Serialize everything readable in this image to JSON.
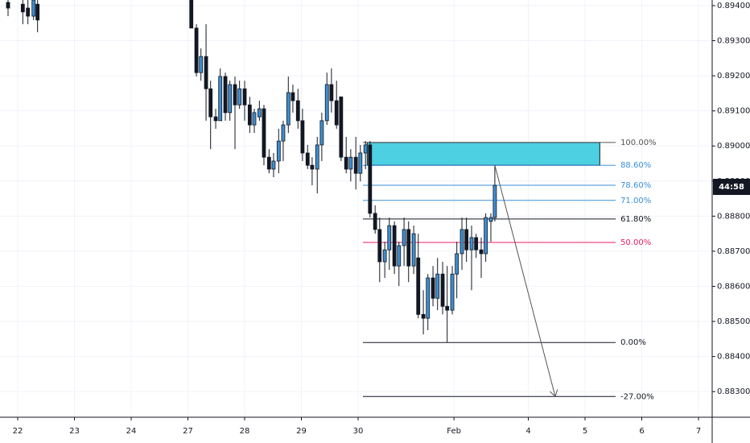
{
  "chart_data": {
    "type": "candlestick",
    "candles": {
      "up_color": "#3d8fd1",
      "down_color": "#131722",
      "x": [
        -0.17,
        0.09,
        0.18,
        0.28,
        0.35,
        3.06,
        3.15,
        3.23,
        3.32,
        3.4,
        3.49,
        3.57,
        3.66,
        3.74,
        3.83,
        3.91,
        4.0,
        4.09,
        4.17,
        4.26,
        4.34,
        4.43,
        4.51,
        4.6,
        4.68,
        4.77,
        4.85,
        4.94,
        5.02,
        5.11,
        5.19,
        5.28,
        5.36,
        5.45,
        5.53,
        5.62,
        5.7,
        5.79,
        5.87,
        5.96,
        6.04,
        6.13,
        6.21,
        6.3,
        6.38,
        6.47,
        6.55,
        6.64,
        6.72,
        6.81,
        6.89,
        6.98,
        7.06,
        7.15,
        7.23,
        7.32,
        7.4,
        7.49,
        7.57,
        7.66,
        7.74,
        7.83,
        7.91,
        8.0,
        8.08,
        8.17,
        8.25,
        8.34,
        8.41
      ],
      "open": [
        0.89409,
        0.89404,
        0.89393,
        0.8937,
        0.89404,
        0.89416,
        0.89336,
        0.89209,
        0.89255,
        0.89163,
        0.89083,
        0.89072,
        0.89198,
        0.89095,
        0.89175,
        0.89117,
        0.89163,
        0.89117,
        0.8906,
        0.89083,
        0.89106,
        0.88968,
        0.88934,
        0.88957,
        0.89014,
        0.8906,
        0.89152,
        0.89129,
        0.89072,
        0.8898,
        0.88945,
        0.88934,
        0.89003,
        0.89072,
        0.89175,
        0.89129,
        0.8914,
        0.88968,
        0.88934,
        0.88968,
        0.88922,
        0.8898,
        0.89003,
        0.88808,
        0.88762,
        0.8867,
        0.88704,
        0.88773,
        0.88658,
        0.88716,
        0.88762,
        0.88658,
        0.88681,
        0.8852,
        0.88509,
        0.88624,
        0.88566,
        0.88635,
        0.88543,
        0.88532,
        0.88635,
        0.88693,
        0.88762,
        0.88704,
        0.88739,
        0.88704,
        0.88693,
        0.88785,
        0.88796
      ],
      "high": [
        0.89416,
        0.89416,
        0.89416,
        0.89416,
        0.89416,
        0.89416,
        0.89347,
        0.89278,
        0.89347,
        0.89186,
        0.89106,
        0.89221,
        0.89209,
        0.89186,
        0.89198,
        0.89186,
        0.89186,
        0.8914,
        0.89106,
        0.89129,
        0.89117,
        0.88991,
        0.8898,
        0.89049,
        0.89072,
        0.89198,
        0.89175,
        0.89163,
        0.89106,
        0.89003,
        0.88968,
        0.89026,
        0.89095,
        0.89209,
        0.89221,
        0.89186,
        0.8914,
        0.89026,
        0.88991,
        0.89026,
        0.89003,
        0.89014,
        0.89014,
        0.88831,
        0.88796,
        0.88727,
        0.88796,
        0.88785,
        0.88727,
        0.88796,
        0.88785,
        0.88773,
        0.8875,
        0.88589,
        0.88635,
        0.88658,
        0.88681,
        0.8867,
        0.88658,
        0.88658,
        0.88727,
        0.88796,
        0.88796,
        0.88773,
        0.8875,
        0.88739,
        0.88808,
        0.88808,
        0.88945
      ],
      "low": [
        0.8937,
        0.89347,
        0.89347,
        0.89359,
        0.89324,
        0.89336,
        0.89198,
        0.89186,
        0.89072,
        0.88991,
        0.89049,
        0.89072,
        0.89072,
        0.89072,
        0.88991,
        0.89106,
        0.89072,
        0.89037,
        0.89037,
        0.89072,
        0.88945,
        0.88922,
        0.88911,
        0.88922,
        0.88957,
        0.89037,
        0.89095,
        0.89049,
        0.88957,
        0.88934,
        0.88888,
        0.88865,
        0.88957,
        0.8906,
        0.89095,
        0.89049,
        0.88957,
        0.88922,
        0.88899,
        0.88876,
        0.88899,
        0.88934,
        0.88796,
        0.8875,
        0.88612,
        0.88624,
        0.88647,
        0.88635,
        0.88601,
        0.88658,
        0.88612,
        0.88635,
        0.88509,
        0.88463,
        0.88475,
        0.88543,
        0.88532,
        0.8852,
        0.8844,
        0.8852,
        0.88566,
        0.88647,
        0.8867,
        0.88589,
        0.88681,
        0.88624,
        0.8867,
        0.88727,
        0.88785
      ],
      "close": [
        0.89393,
        0.89382,
        0.8937,
        0.89416,
        0.89359,
        0.89336,
        0.89209,
        0.89255,
        0.89163,
        0.89083,
        0.89072,
        0.89198,
        0.89095,
        0.89175,
        0.89117,
        0.89163,
        0.89117,
        0.8906,
        0.89095,
        0.89106,
        0.88968,
        0.88934,
        0.88957,
        0.89014,
        0.8906,
        0.89152,
        0.89129,
        0.89072,
        0.8898,
        0.88945,
        0.88934,
        0.89003,
        0.89072,
        0.89175,
        0.89129,
        0.8906,
        0.88968,
        0.88934,
        0.88968,
        0.88922,
        0.8898,
        0.89003,
        0.88808,
        0.88762,
        0.8867,
        0.88704,
        0.88773,
        0.88658,
        0.88716,
        0.88762,
        0.88658,
        0.8875,
        0.8852,
        0.88509,
        0.88624,
        0.88566,
        0.88635,
        0.88543,
        0.88532,
        0.88635,
        0.88693,
        0.88762,
        0.88704,
        0.88739,
        0.88704,
        0.88693,
        0.88796,
        0.88796,
        0.88888
      ]
    },
    "fib": {
      "x": [
        6.085,
        10.54
      ],
      "levels": [
        {
          "label": "100.00%",
          "value": 0.8901,
          "color": "#555555"
        },
        {
          "label": "88.60%",
          "value": 0.88945,
          "color": "#3a8fd8"
        },
        {
          "label": "78.60%",
          "value": 0.88888,
          "color": "#3a8fd8"
        },
        {
          "label": "71.00%",
          "value": 0.88845,
          "color": "#3a8fd8"
        },
        {
          "label": "61.80%",
          "value": 0.88792,
          "color": "#131722"
        },
        {
          "label": "50.00%",
          "value": 0.88725,
          "color": "#e91e63"
        },
        {
          "label": "0.00%",
          "value": 0.8844,
          "color": "#131722"
        },
        {
          "label": "-27.00%",
          "value": 0.88286,
          "color": "#131722"
        }
      ]
    },
    "zone": {
      "x": [
        6.16,
        10.26
      ],
      "y": [
        0.88945,
        0.8901
      ],
      "color": "#4dd0e1"
    },
    "arrow": {
      "x": [
        8.41,
        9.475
      ],
      "y": [
        0.88945,
        0.88286
      ]
    },
    "countdown": "44:58",
    "xlim": [
      -0.312,
      12.241
    ],
    "xticks": [
      {
        "value": 0,
        "label": "22"
      },
      {
        "value": 1,
        "label": "23"
      },
      {
        "value": 2,
        "label": "24"
      },
      {
        "value": 3,
        "label": "27"
      },
      {
        "value": 4,
        "label": "28"
      },
      {
        "value": 5,
        "label": "29"
      },
      {
        "value": 6,
        "label": "30"
      },
      {
        "value": 7.69,
        "label": "Feb"
      },
      {
        "value": 9,
        "label": "4"
      },
      {
        "value": 10,
        "label": "5"
      },
      {
        "value": 11,
        "label": "6"
      },
      {
        "value": 12,
        "label": "7"
      }
    ],
    "ylim": [
      0.88227,
      0.89416
    ],
    "yticks": [
      {
        "value": 0.894,
        "label": "0.89400"
      },
      {
        "value": 0.893,
        "label": "0.89300"
      },
      {
        "value": 0.892,
        "label": "0.89200"
      },
      {
        "value": 0.891,
        "label": "0.89100"
      },
      {
        "value": 0.89,
        "label": "0.89000"
      },
      {
        "value": 0.889,
        "label": "0.88900"
      },
      {
        "value": 0.888,
        "label": "0.88800"
      },
      {
        "value": 0.887,
        "label": "0.88700"
      },
      {
        "value": 0.886,
        "label": "0.88600"
      },
      {
        "value": 0.885,
        "label": "0.88500"
      },
      {
        "value": 0.884,
        "label": "0.88400"
      },
      {
        "value": 0.883,
        "label": "0.88300"
      }
    ],
    "grid": true
  }
}
